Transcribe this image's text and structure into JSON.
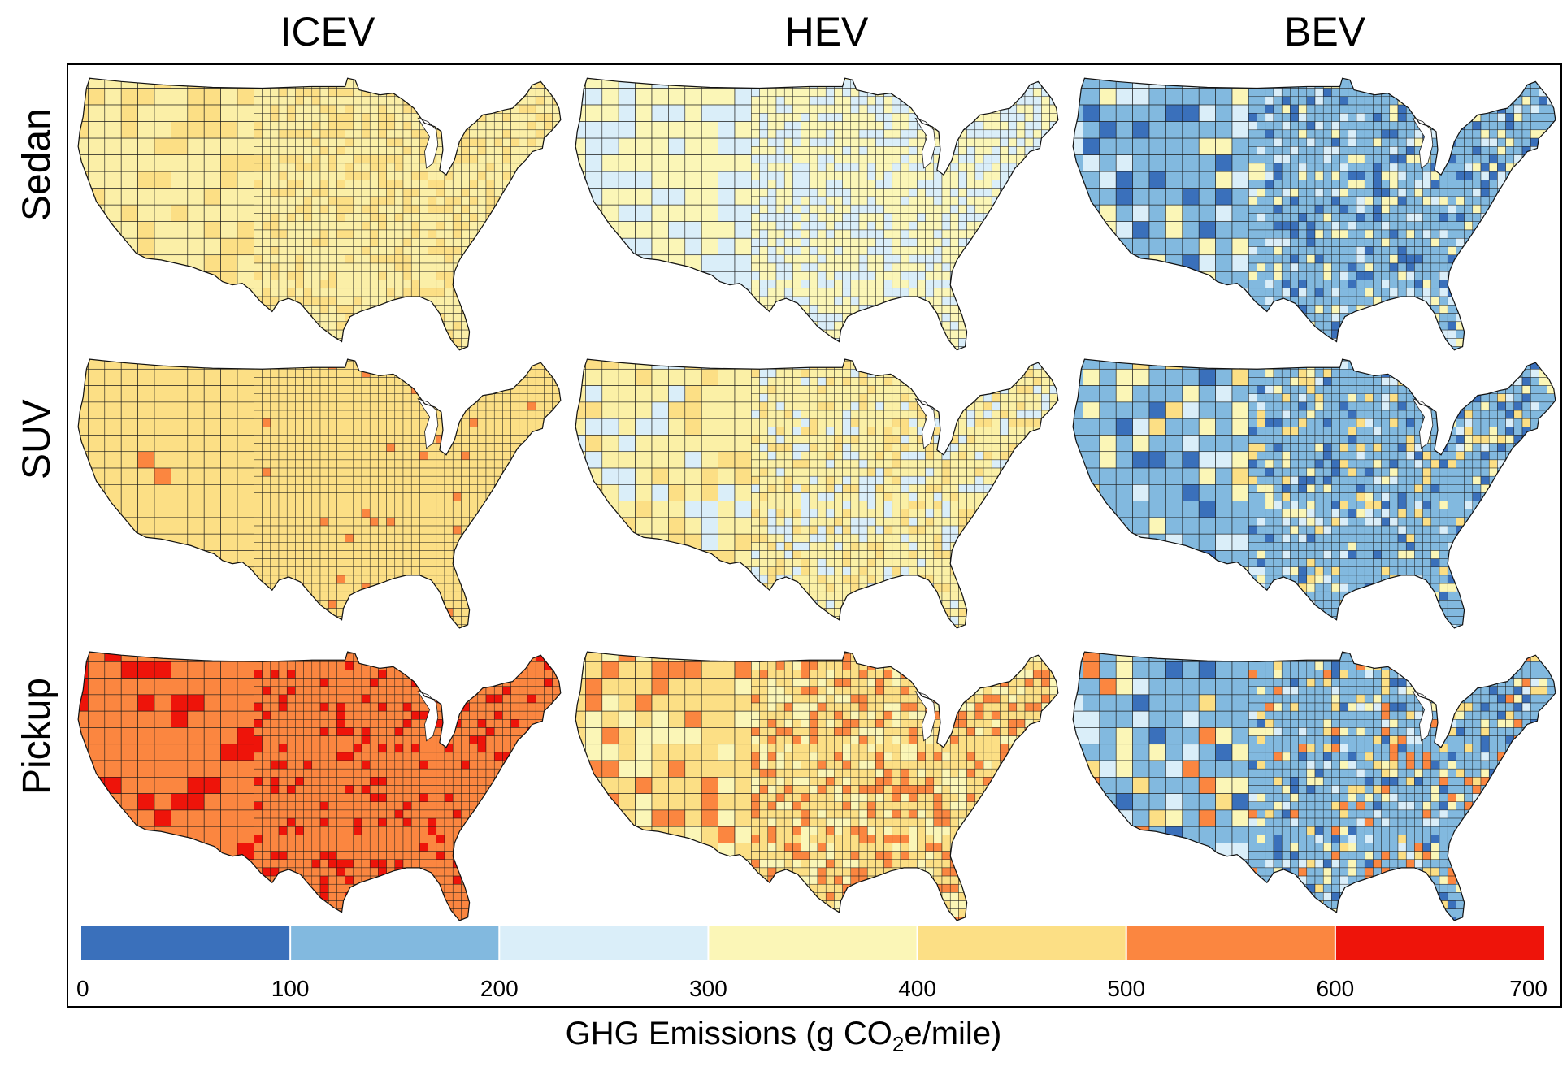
{
  "columns": [
    {
      "label": "ICEV"
    },
    {
      "label": "HEV"
    },
    {
      "label": "BEV"
    }
  ],
  "rows": [
    {
      "label": "Sedan"
    },
    {
      "label": "SUV"
    },
    {
      "label": "Pickup"
    }
  ],
  "legend": {
    "ticks": [
      "0",
      "100",
      "200",
      "300",
      "400",
      "500",
      "600",
      "700"
    ],
    "bins": [
      {
        "from": 0,
        "to": 100,
        "color": "#3a70bb"
      },
      {
        "from": 100,
        "to": 200,
        "color": "#82b9df"
      },
      {
        "from": 200,
        "to": 300,
        "color": "#daeef9"
      },
      {
        "from": 300,
        "to": 400,
        "color": "#fbf6b7"
      },
      {
        "from": 400,
        "to": 500,
        "color": "#fcdf85"
      },
      {
        "from": 500,
        "to": 600,
        "color": "#fb8640"
      },
      {
        "from": 600,
        "to": 700,
        "color": "#ee140a"
      }
    ]
  },
  "caption": {
    "prefix": "GHG Emissions (g CO",
    "subscript": "2",
    "suffix": "e/mile)"
  },
  "maps": [
    {
      "vehicle": "Sedan",
      "powertrain": "ICEV",
      "base_color": "#fbefa7",
      "accent_colors": [
        "#fcdf85"
      ],
      "accent_share": 0.35
    },
    {
      "vehicle": "Sedan",
      "powertrain": "HEV",
      "base_color": "#fbf6b7",
      "accent_colors": [
        "#daeef9"
      ],
      "accent_share": 0.4
    },
    {
      "vehicle": "Sedan",
      "powertrain": "BEV",
      "base_color": "#82b9df",
      "accent_colors": [
        "#3a70bb",
        "#daeef9",
        "#fbf6b7"
      ],
      "accent_share": 0.35
    },
    {
      "vehicle": "SUV",
      "powertrain": "ICEV",
      "base_color": "#fcdf85",
      "accent_colors": [
        "#fb8640"
      ],
      "accent_share": 0.03
    },
    {
      "vehicle": "SUV",
      "powertrain": "HEV",
      "base_color": "#fbf0a6",
      "accent_colors": [
        "#fcdf85",
        "#daeef9"
      ],
      "accent_share": 0.4
    },
    {
      "vehicle": "SUV",
      "powertrain": "BEV",
      "base_color": "#82b9df",
      "accent_colors": [
        "#3a70bb",
        "#daeef9",
        "#fbf6b7",
        "#fcdf85"
      ],
      "accent_share": 0.35
    },
    {
      "vehicle": "Pickup",
      "powertrain": "ICEV",
      "base_color": "#fb8640",
      "accent_colors": [
        "#ee140a"
      ],
      "accent_share": 0.18
    },
    {
      "vehicle": "Pickup",
      "powertrain": "HEV",
      "base_color": "#fcdf85",
      "accent_colors": [
        "#fb8640",
        "#fbf6b7"
      ],
      "accent_share": 0.45
    },
    {
      "vehicle": "Pickup",
      "powertrain": "BEV",
      "base_color": "#82b9df",
      "accent_colors": [
        "#3a70bb",
        "#daeef9",
        "#fbf6b7",
        "#fcdf85",
        "#fb8640"
      ],
      "accent_share": 0.4
    }
  ]
}
